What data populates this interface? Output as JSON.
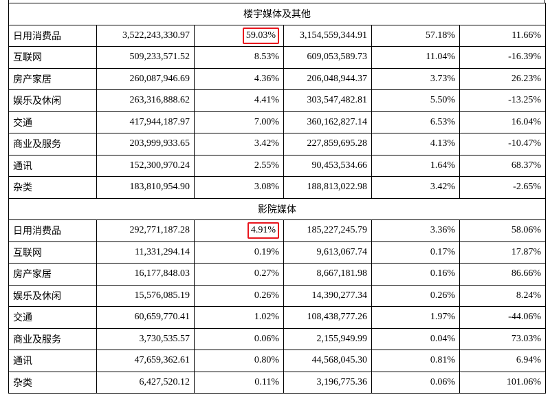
{
  "sections": [
    {
      "title": "楼宇媒体及其他",
      "rows": [
        {
          "name": "日用消费品",
          "v1": "3,522,243,330.97",
          "p1": "59.03%",
          "v2": "3,154,559,344.91",
          "p2": "57.18%",
          "chg": "11.66%",
          "highlight": true
        },
        {
          "name": "互联网",
          "v1": "509,233,571.52",
          "p1": "8.53%",
          "v2": "609,053,589.73",
          "p2": "11.04%",
          "chg": "-16.39%",
          "highlight": false
        },
        {
          "name": "房产家居",
          "v1": "260,087,946.69",
          "p1": "4.36%",
          "v2": "206,048,944.37",
          "p2": "3.73%",
          "chg": "26.23%",
          "highlight": false
        },
        {
          "name": "娱乐及休闲",
          "v1": "263,316,888.62",
          "p1": "4.41%",
          "v2": "303,547,482.81",
          "p2": "5.50%",
          "chg": "-13.25%",
          "highlight": false
        },
        {
          "name": "交通",
          "v1": "417,944,187.97",
          "p1": "7.00%",
          "v2": "360,162,827.14",
          "p2": "6.53%",
          "chg": "16.04%",
          "highlight": false
        },
        {
          "name": "商业及服务",
          "v1": "203,999,933.65",
          "p1": "3.42%",
          "v2": "227,859,695.28",
          "p2": "4.13%",
          "chg": "-10.47%",
          "highlight": false
        },
        {
          "name": "通讯",
          "v1": "152,300,970.24",
          "p1": "2.55%",
          "v2": "90,453,534.66",
          "p2": "1.64%",
          "chg": "68.37%",
          "highlight": false
        },
        {
          "name": "杂类",
          "v1": "183,810,954.90",
          "p1": "3.08%",
          "v2": "188,813,022.98",
          "p2": "3.42%",
          "chg": "-2.65%",
          "highlight": false
        }
      ]
    },
    {
      "title": "影院媒体",
      "rows": [
        {
          "name": "日用消费品",
          "v1": "292,771,187.28",
          "p1": "4.91%",
          "v2": "185,227,245.79",
          "p2": "3.36%",
          "chg": "58.06%",
          "highlight": true
        },
        {
          "name": "互联网",
          "v1": "11,331,294.14",
          "p1": "0.19%",
          "v2": "9,613,067.74",
          "p2": "0.17%",
          "chg": "17.87%",
          "highlight": false
        },
        {
          "name": "房产家居",
          "v1": "16,177,848.03",
          "p1": "0.27%",
          "v2": "8,667,181.98",
          "p2": "0.16%",
          "chg": "86.66%",
          "highlight": false
        },
        {
          "name": "娱乐及休闲",
          "v1": "15,576,085.19",
          "p1": "0.26%",
          "v2": "14,390,277.34",
          "p2": "0.26%",
          "chg": "8.24%",
          "highlight": false
        },
        {
          "name": "交通",
          "v1": "60,659,770.41",
          "p1": "1.02%",
          "v2": "108,438,777.26",
          "p2": "1.97%",
          "chg": "-44.06%",
          "highlight": false
        },
        {
          "name": "商业及服务",
          "v1": "3,730,535.57",
          "p1": "0.06%",
          "v2": "2,155,949.99",
          "p2": "0.04%",
          "chg": "73.03%",
          "highlight": false
        },
        {
          "name": "通讯",
          "v1": "47,659,362.61",
          "p1": "0.80%",
          "v2": "44,568,045.30",
          "p2": "0.81%",
          "chg": "6.94%",
          "highlight": false
        },
        {
          "name": "杂类",
          "v1": "6,427,520.12",
          "p1": "0.11%",
          "v2": "3,196,775.36",
          "p2": "0.06%",
          "chg": "101.06%",
          "highlight": false
        }
      ]
    }
  ],
  "colors": {
    "highlight_border": "#e8141c",
    "grid": "#000000",
    "text": "#000000"
  }
}
